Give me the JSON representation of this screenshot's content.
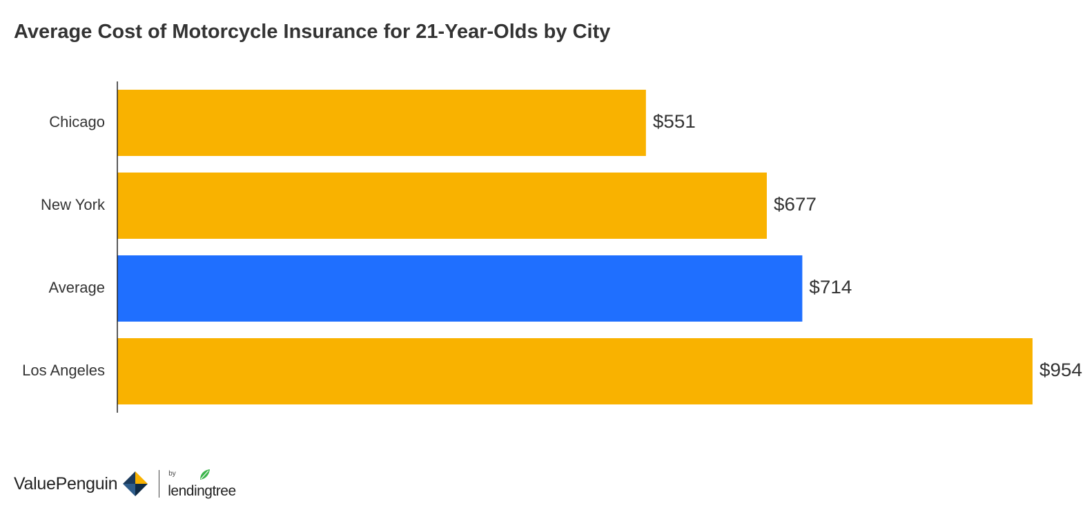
{
  "chart_data": {
    "type": "bar",
    "orientation": "horizontal",
    "title": "Average Cost of Motorcycle Insurance for 21-Year-Olds by City",
    "categories": [
      "Chicago",
      "New York",
      "Average",
      "Los Angeles"
    ],
    "values": [
      551,
      677,
      714,
      954
    ],
    "value_labels": [
      "$551",
      "$677",
      "$714",
      "$954"
    ],
    "bar_colors": [
      "#F9B200",
      "#F9B200",
      "#1F6FFF",
      "#F9B200"
    ],
    "xlim": [
      0,
      954
    ],
    "grid": false,
    "xlabel": "",
    "ylabel": ""
  },
  "branding": {
    "brand": "ValuePenguin",
    "by": "by",
    "partner": "lendingtree"
  },
  "colors": {
    "highlight": "#F9B200",
    "average": "#1F6FFF",
    "text": "#333333",
    "leaf": "#3BB54A"
  }
}
